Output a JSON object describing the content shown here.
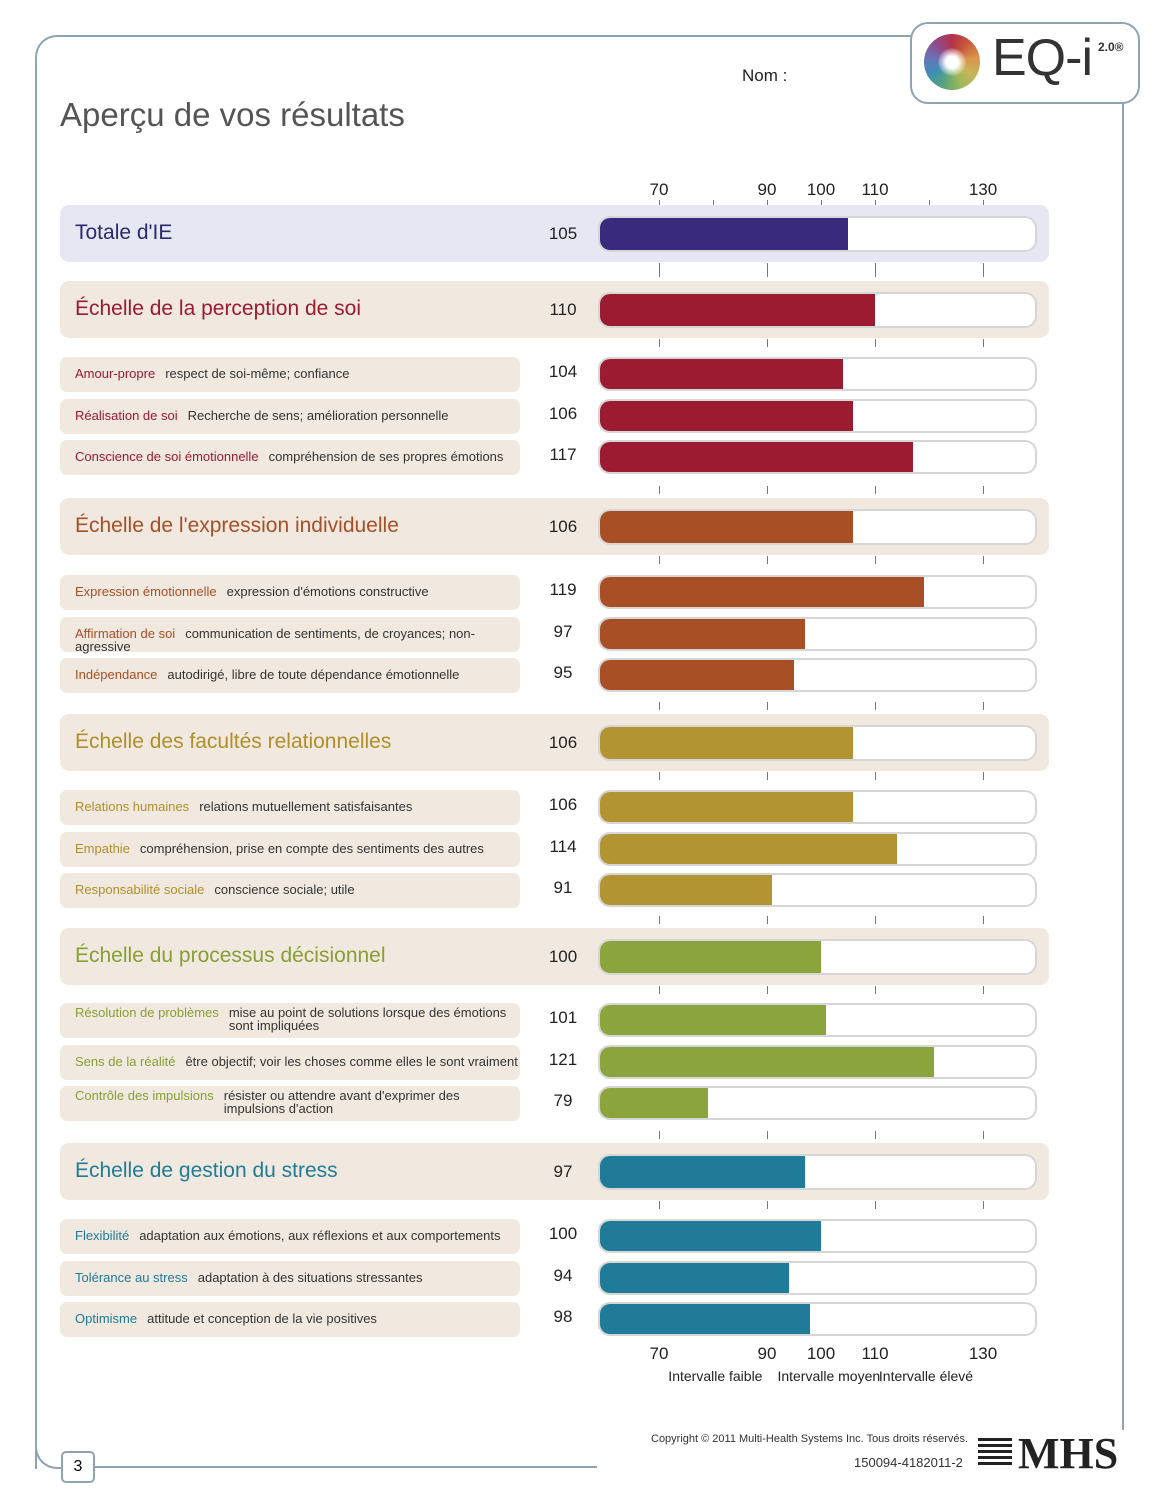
{
  "header": {
    "title": "Aperçu de vos résultats",
    "name_label": "Nom :",
    "logo_text": "EQ-i",
    "logo_version": "2.0®"
  },
  "chart_data": {
    "type": "bar",
    "orientation": "horizontal",
    "axis_ticks": [
      70,
      90,
      100,
      110,
      130
    ],
    "range_labels": [
      "Intervalle faible",
      "Intervalle moyen",
      "Intervalle élevé"
    ],
    "xlim": [
      59,
      140
    ],
    "groups": [
      {
        "name": "Totale d'IE",
        "value": 105,
        "color": "#3a2a7e",
        "text_color": "#2a2a6e",
        "band_color": "#e7e6f3",
        "subscales": []
      },
      {
        "name": "Échelle de la perception de soi",
        "value": 110,
        "color": "#9b1b30",
        "text_color": "#9b1b30",
        "band_color": "#f1e9df",
        "subscales": [
          {
            "name": "Amour-propre",
            "desc": "respect de soi-même; confiance",
            "value": 104
          },
          {
            "name": "Réalisation de soi",
            "desc": "Recherche de sens; amélioration personnelle",
            "value": 106
          },
          {
            "name": "Conscience de soi émotionnelle",
            "desc": "compréhension de ses propres émotions",
            "value": 117
          }
        ]
      },
      {
        "name": "Échelle de l'expression individuelle",
        "value": 106,
        "color": "#a84f25",
        "text_color": "#a84f25",
        "band_color": "#f1e9df",
        "subscales": [
          {
            "name": "Expression émotionnelle",
            "desc": "expression d'émotions constructive",
            "value": 119
          },
          {
            "name": "Affirmation de soi",
            "desc": "communication de sentiments, de croyances; non-agressive",
            "value": 97
          },
          {
            "name": "Indépendance",
            "desc": "autodirigé, libre de toute dépendance émotionnelle",
            "value": 95
          }
        ]
      },
      {
        "name": "Échelle des facultés relationnelles",
        "value": 106,
        "color": "#b29433",
        "text_color": "#b08f2a",
        "band_color": "#f1e9df",
        "subscales": [
          {
            "name": "Relations humaines",
            "desc": "relations mutuellement satisfaisantes",
            "value": 106
          },
          {
            "name": "Empathie",
            "desc": "compréhension, prise en compte des sentiments des autres",
            "value": 114
          },
          {
            "name": "Responsabilité sociale",
            "desc": "conscience sociale; utile",
            "value": 91
          }
        ]
      },
      {
        "name": "Échelle du processus décisionnel",
        "value": 100,
        "color": "#8ba43c",
        "text_color": "#86a034",
        "band_color": "#f1e9df",
        "subscales": [
          {
            "name": "Résolution de problèmes",
            "desc": "mise au point de solutions lorsque des émotions sont impliquées",
            "value": 101
          },
          {
            "name": "Sens de la réalité",
            "desc": "être objectif; voir les choses comme elles le sont vraiment",
            "value": 121
          },
          {
            "name": "Contrôle des impulsions",
            "desc": "résister ou attendre avant d'exprimer des impulsions d'action",
            "value": 79
          }
        ]
      },
      {
        "name": "Échelle de gestion du stress",
        "value": 97,
        "color": "#1f7b97",
        "text_color": "#1f7b97",
        "band_color": "#f1e9df",
        "subscales": [
          {
            "name": "Flexibilité",
            "desc": "adaptation aux émotions, aux réflexions et aux comportements",
            "value": 100
          },
          {
            "name": "Tolérance au stress",
            "desc": "adaptation à des situations stressantes",
            "value": 94
          },
          {
            "name": "Optimisme",
            "desc": "attitude et conception de la vie positives",
            "value": 98
          }
        ]
      }
    ]
  },
  "footer": {
    "copyright": "Copyright © 2011 Multi-Health Systems Inc. Tous droits réservés.",
    "code": "150094-4182011-2",
    "publisher_logo": "MHS",
    "page_number": "3"
  }
}
